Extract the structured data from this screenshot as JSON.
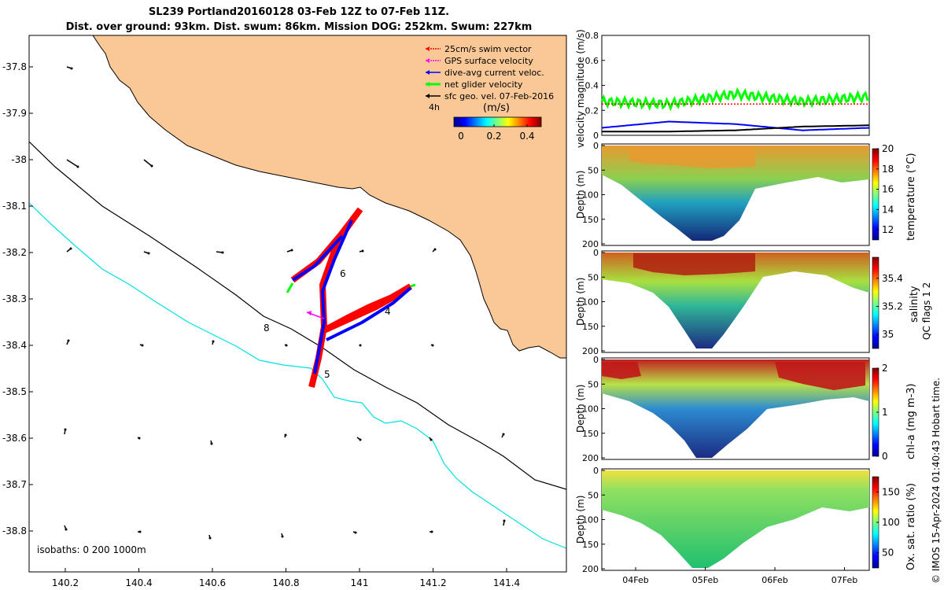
{
  "header": {
    "title_line1": "SL239 Portland20160128 03-Feb 12Z to 07-Feb 11Z.",
    "title_line2": "Dist. over ground: 93km. Dist. swum: 86km. Mission DOG: 252km. Swum: 227km"
  },
  "colors": {
    "land": "#fac896",
    "swim_vector": "#ff0000",
    "gps_velocity": "#ff00ff",
    "dive_avg_current": "#0000ff",
    "net_glider_velocity": "#00ff00",
    "sfc_geo_vel": "#000000",
    "isobath_200": "#000000",
    "isobath_1000": "#00e0e0"
  },
  "map": {
    "legend": [
      {
        "label": "25cm/s swim vector",
        "color": "#ff0000",
        "style": "dotted"
      },
      {
        "label": "GPS surface velocity",
        "color": "#ff00ff",
        "style": "dotted"
      },
      {
        "label": "dive-avg current veloc.",
        "color": "#0000ff",
        "style": "solid"
      },
      {
        "label": "net glider velocity",
        "color": "#00ff00",
        "style": "thick"
      },
      {
        "label": "sfc geo. vel. 07-Feb-2016",
        "color": "#000000",
        "style": "solid"
      }
    ],
    "legend_time_scale": "4h",
    "colorbar_title": "(m/s)",
    "colorbar_ticks": [
      "0",
      "0.2",
      "0.4"
    ],
    "isobath_note": "isobaths: 0   200  1000m",
    "day_labels": [
      "4",
      "5",
      "6",
      "8"
    ],
    "xaxis_ticks": [
      "140.2",
      "140.4",
      "140.6",
      "140.8",
      "141",
      "141.2",
      "141.4"
    ],
    "yaxis_ticks": [
      "-37.8",
      "-37.9",
      "-38",
      "-38.1",
      "-38.2",
      "-38.3",
      "-38.4",
      "-38.5",
      "-38.6",
      "-38.7",
      "-38.8"
    ]
  },
  "chart_data": [
    {
      "type": "line",
      "ylabel": "velocity magnitude (m/s)",
      "ylim": [
        0,
        0.8
      ],
      "yticks": [
        "0",
        "0.2",
        "0.4",
        "0.6",
        "0.8"
      ],
      "x": [
        "03-Feb 12Z",
        "04-Feb 12Z",
        "05-Feb 12Z",
        "06-Feb 12Z",
        "07-Feb 11Z"
      ],
      "series": [
        {
          "color": "#00ff00",
          "values": [
            0.27,
            0.25,
            0.33,
            0.27,
            0.31
          ]
        },
        {
          "color": "#ff0000",
          "values": [
            0.25,
            0.25,
            0.25,
            0.25,
            0.25
          ]
        },
        {
          "color": "#0000ff",
          "values": [
            0.06,
            0.11,
            0.09,
            0.04,
            0.06
          ]
        },
        {
          "color": "#000000",
          "values": [
            0.03,
            0.03,
            0.04,
            0.07,
            0.08
          ]
        }
      ]
    },
    {
      "type": "heatmap",
      "ylabel": "Depth (m)",
      "yticks": [
        "0",
        "50",
        "100",
        "150",
        "200"
      ],
      "colorbar_label": "temperature (°C)",
      "colorbar_ticks": [
        "12",
        "14",
        "16",
        "18",
        "20"
      ],
      "colorbar_range": [
        11,
        20
      ]
    },
    {
      "type": "heatmap",
      "ylabel": "Depth (m)",
      "yticks": [
        "0",
        "50",
        "100",
        "150",
        "200"
      ],
      "colorbar_label": "salinity",
      "colorbar_ticks": [
        "35",
        "35.2",
        "35.4"
      ],
      "colorbar_range": [
        34.9,
        35.55
      ]
    },
    {
      "type": "heatmap",
      "ylabel": "Depth (m)",
      "yticks": [
        "0",
        "50",
        "100",
        "150",
        "200"
      ],
      "colorbar_label": "chl-a (mg m-3)",
      "colorbar_ticks": [
        "0",
        "1",
        "2"
      ],
      "colorbar_range": [
        0,
        2
      ]
    },
    {
      "type": "heatmap",
      "ylabel": "Depth (m)",
      "yticks": [
        "0",
        "50",
        "100",
        "150",
        "200"
      ],
      "colorbar_label": "Ox. sat. ratio (%)",
      "colorbar_ticks": [
        "50",
        "100",
        "150"
      ],
      "colorbar_range": [
        25,
        175
      ],
      "xticks": [
        "04Feb",
        "05Feb",
        "06Feb",
        "07Feb"
      ]
    }
  ],
  "qc_note": "QC flags 1  2",
  "copyright": "© IMOS 15-Apr-2024 01:40:43 Hobart time."
}
